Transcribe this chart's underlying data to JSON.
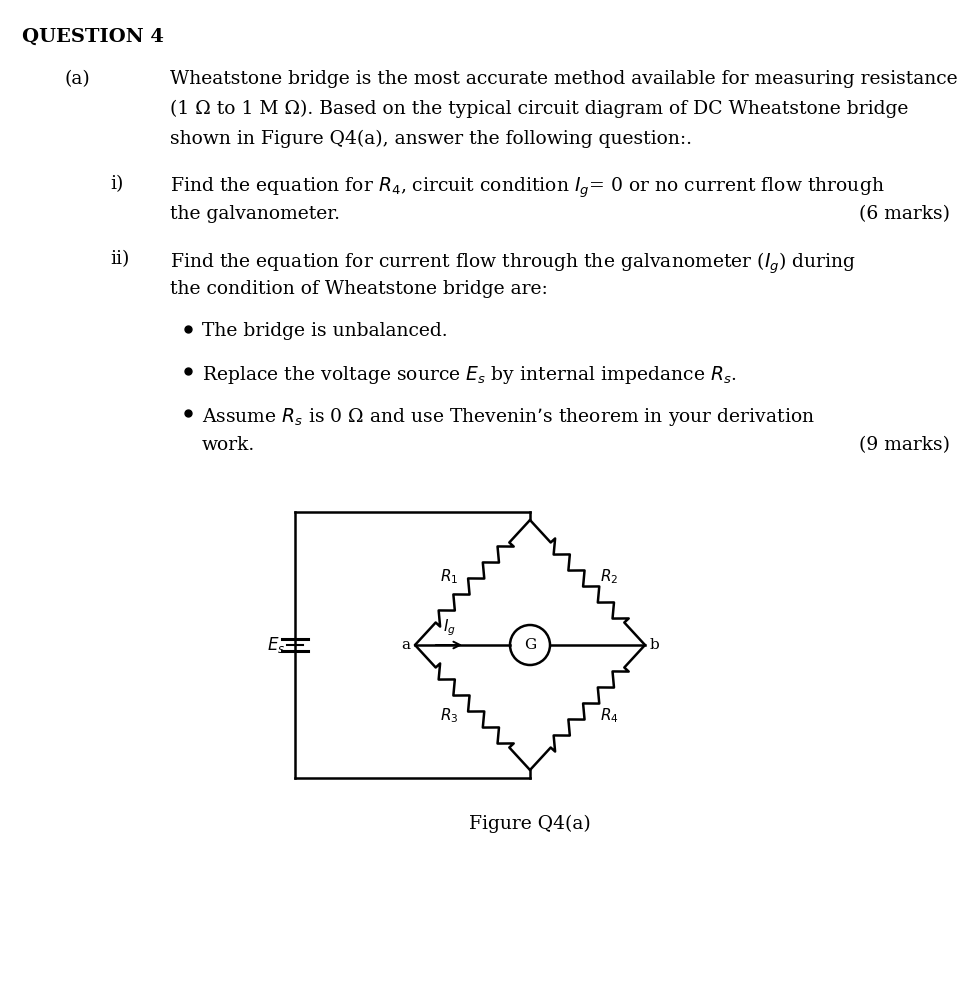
{
  "background_color": "#ffffff",
  "question_header": "QUESTION 4",
  "part_a_label": "(a)",
  "part_a_text_line1": "Wheatstone bridge is the most accurate method available for measuring resistance",
  "part_a_text_line2": "(1 Ω to 1 M Ω). Based on the typical circuit diagram of DC Wheatstone bridge",
  "part_a_text_line3": "shown in Figure Q4(a), answer the following question:.",
  "part_i_label": "i)",
  "part_i_text": "Find the equation for $R_4$, circuit condition $I_g$= 0 or no current flow through",
  "part_i_text2": "the galvanometer.",
  "part_i_marks": "(6 marks)",
  "part_ii_label": "ii)",
  "part_ii_text": "Find the equation for current flow through the galvanometer ($I_g$) during",
  "part_ii_text2": "the condition of Wheatstone bridge are:",
  "bullet1": "The bridge is unbalanced.",
  "bullet2": "Replace the voltage source $E_s$ by internal impedance $R_s$.",
  "bullet3_line1": "Assume $R_s$ is 0 Ω and use Thevenin’s theorem in your derivation",
  "bullet3_line2": "work.",
  "bullet3_marks": "(9 marks)",
  "figure_caption": "Figure Q4(a)",
  "fig_width": 9.8,
  "fig_height": 10.0
}
